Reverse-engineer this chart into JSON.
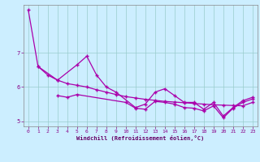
{
  "xlabel": "Windchill (Refroidissement éolien,°C)",
  "bg_color": "#cceeff",
  "grid_color": "#99cccc",
  "line_color": "#aa00aa",
  "main_x": [
    0,
    1,
    3,
    5,
    6,
    7,
    8,
    9,
    11,
    12,
    13,
    14,
    15,
    16,
    17,
    18,
    19,
    20,
    21,
    22,
    23
  ],
  "main_y": [
    8.25,
    6.6,
    6.2,
    6.65,
    6.9,
    6.35,
    6.0,
    5.85,
    5.4,
    5.5,
    5.85,
    5.95,
    5.75,
    5.55,
    5.55,
    5.35,
    5.55,
    5.15,
    5.4,
    5.6,
    5.7
  ],
  "smooth_x": [
    1,
    2,
    3,
    4,
    5,
    6,
    7,
    8,
    9,
    10,
    11,
    12,
    13,
    14,
    15,
    16,
    17,
    18,
    19,
    20,
    21,
    22,
    23
  ],
  "smooth_y": [
    6.6,
    6.35,
    6.2,
    6.1,
    6.05,
    6.0,
    5.92,
    5.85,
    5.78,
    5.72,
    5.68,
    5.64,
    5.61,
    5.58,
    5.56,
    5.54,
    5.52,
    5.5,
    5.48,
    5.47,
    5.46,
    5.45,
    5.55
  ],
  "lower_x": [
    3,
    4,
    5,
    10,
    11,
    12,
    13,
    14,
    15,
    16,
    17,
    18,
    19,
    20,
    21,
    22,
    23
  ],
  "lower_y": [
    5.75,
    5.7,
    5.78,
    5.55,
    5.38,
    5.35,
    5.58,
    5.55,
    5.5,
    5.4,
    5.38,
    5.3,
    5.45,
    5.1,
    5.38,
    5.55,
    5.65
  ],
  "ylim": [
    4.85,
    8.4
  ],
  "xlim": [
    -0.5,
    23.5
  ],
  "yticks": [
    5,
    6,
    7
  ],
  "xticks": [
    0,
    1,
    2,
    3,
    4,
    5,
    6,
    7,
    8,
    9,
    10,
    11,
    12,
    13,
    14,
    15,
    16,
    17,
    18,
    19,
    20,
    21,
    22,
    23
  ]
}
